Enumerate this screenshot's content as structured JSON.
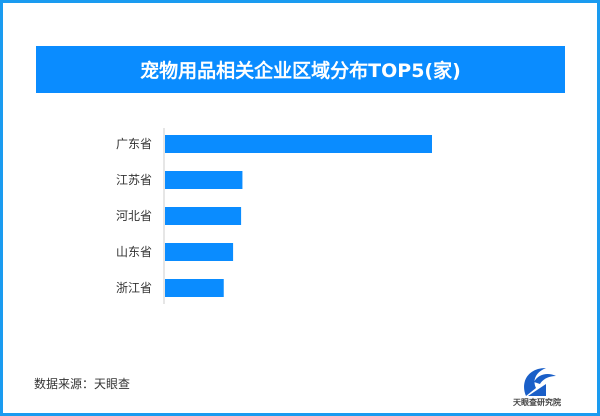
{
  "chart_data": {
    "type": "bar",
    "orientation": "horizontal",
    "title": "宠物用品相关企业区域分布TOP5(家)",
    "categories": [
      "广东省",
      "江苏省",
      "河北省",
      "山东省",
      "浙江省"
    ],
    "values": [
      100,
      29,
      28.5,
      25.5,
      22
    ],
    "value_note_unit": "relative to 广东省 = 100",
    "bar_color": "#0a8cff",
    "grid": false,
    "xlabel": "",
    "ylabel": ""
  },
  "footer": {
    "source": "数据来源：天眼查",
    "logo_text": "天眼查研究院"
  },
  "colors": {
    "border": "#1a9bf0",
    "title_bg": "#0a8cff"
  }
}
